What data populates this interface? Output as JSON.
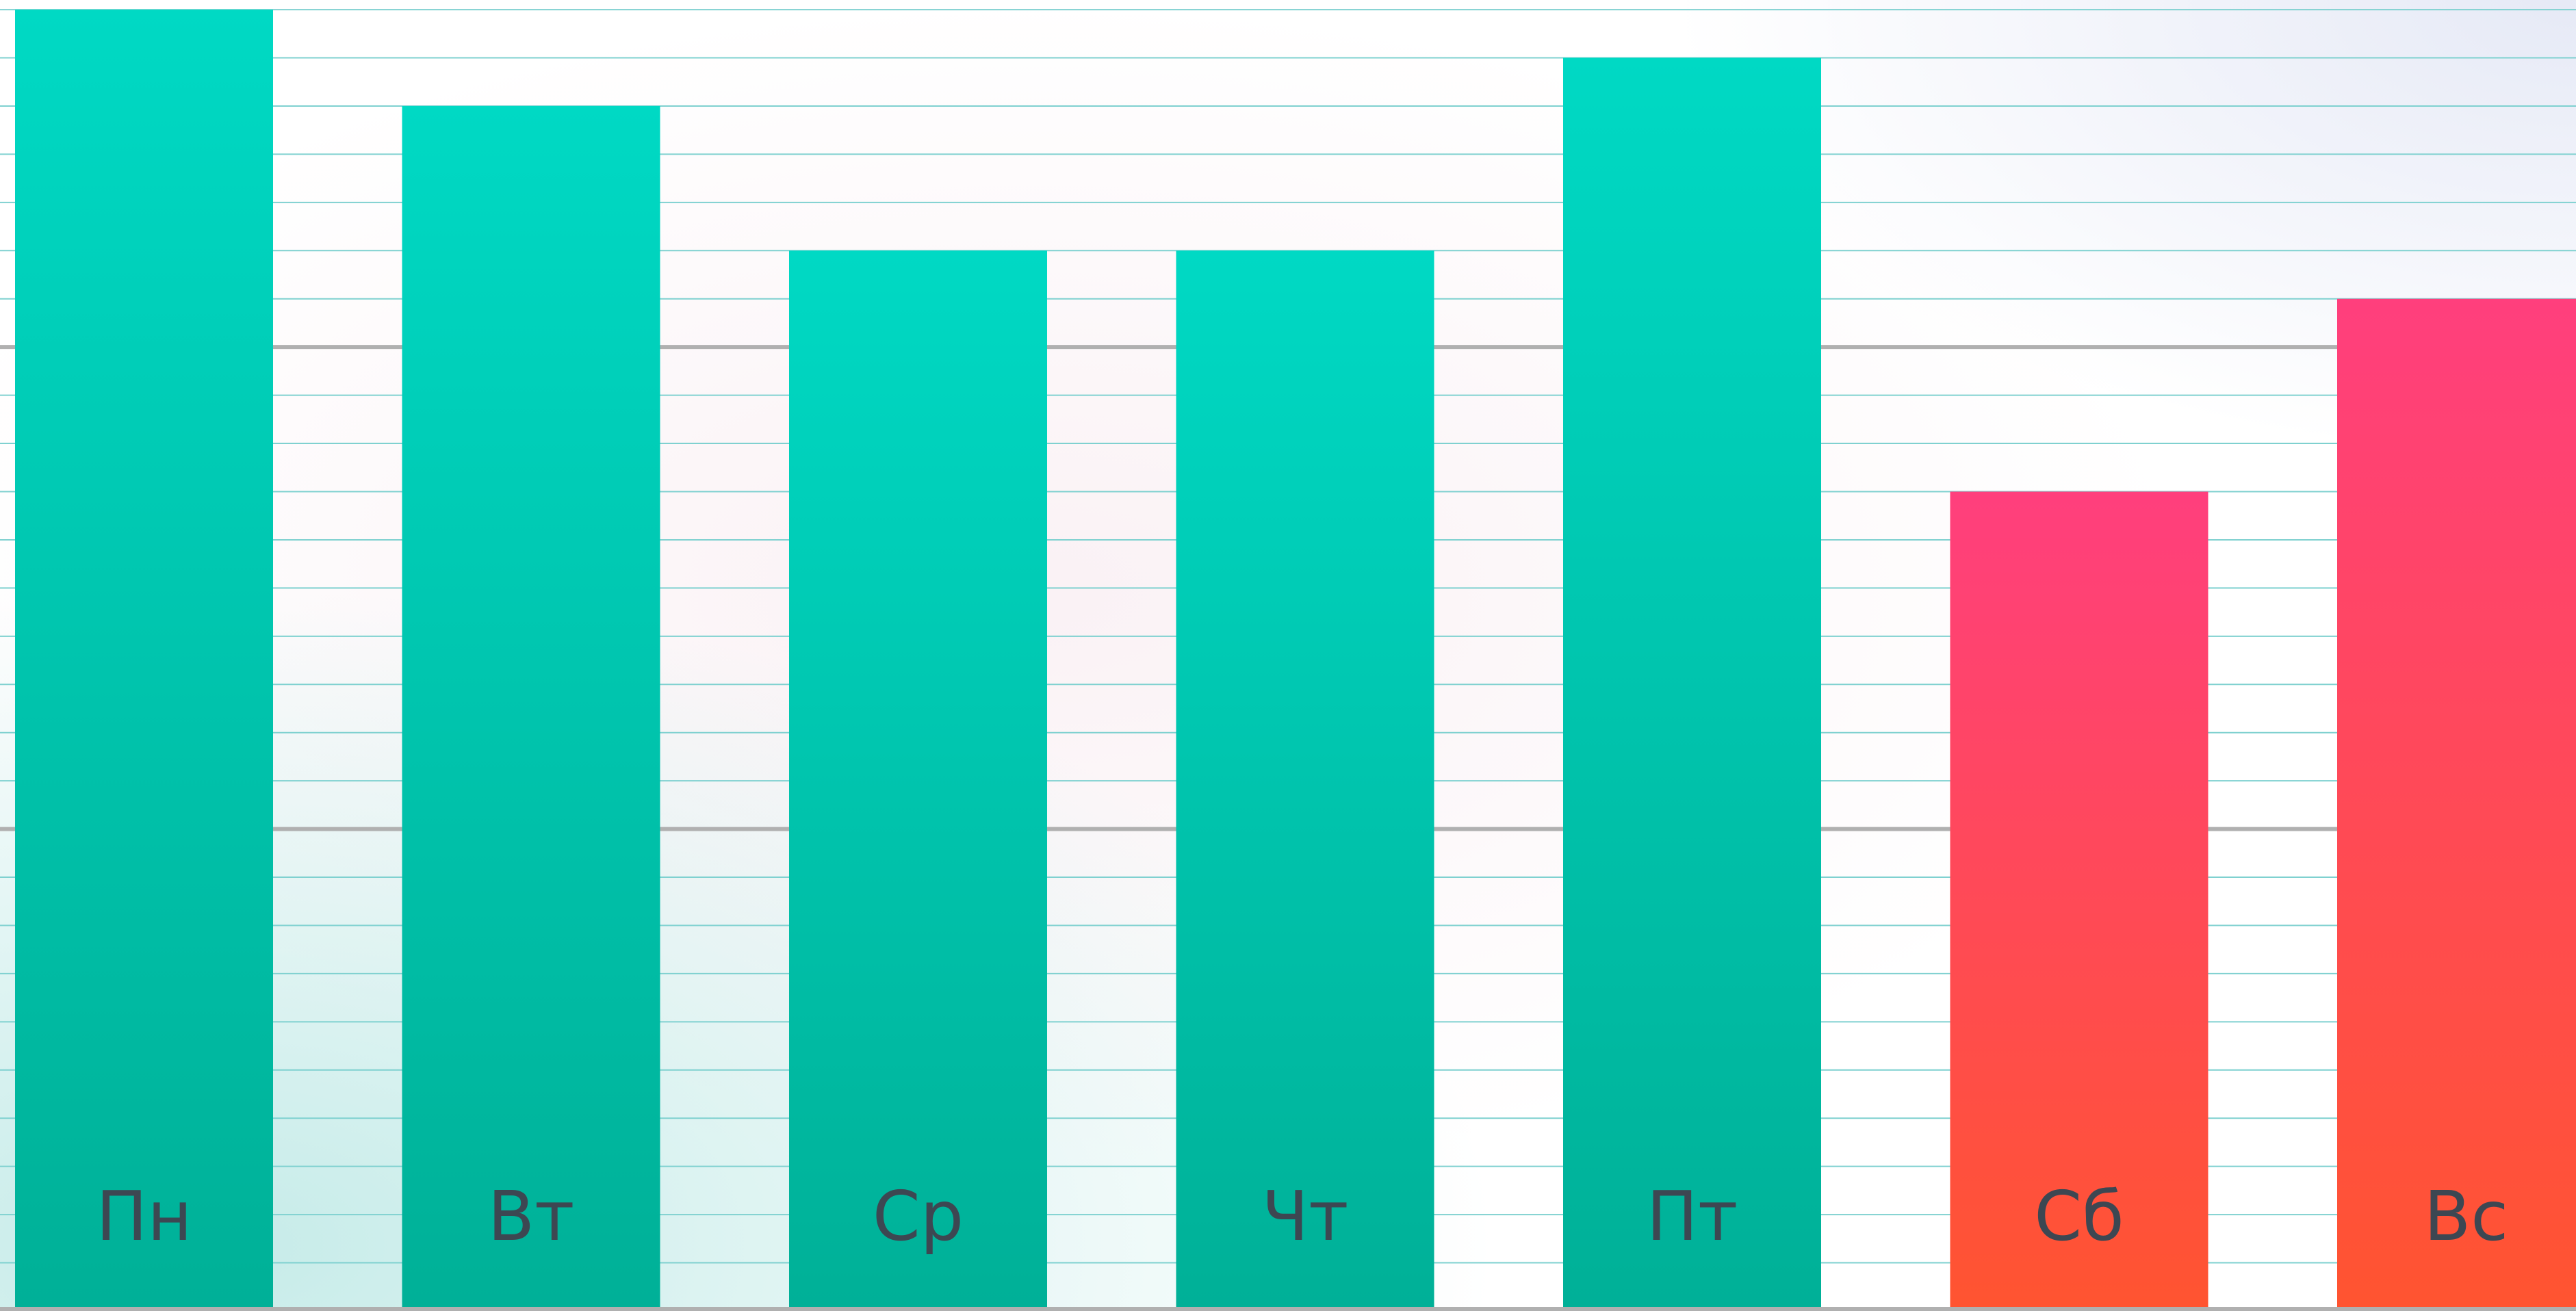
{
  "chart_data": {
    "type": "bar",
    "categories": [
      "Пн",
      "Вт",
      "Ср",
      "Чт",
      "Пт",
      "Сб",
      "Вс"
    ],
    "values": [
      27,
      25,
      22,
      22,
      26,
      17,
      21
    ],
    "ylim": [
      0,
      27.2
    ],
    "grid": true,
    "major_gridlines": [
      10,
      20
    ],
    "category_group_colors": {
      "weekday": {
        "top": "#00D9C4",
        "bottom": "#00B097"
      },
      "weekend": {
        "top": "#FF3F7D",
        "bottom": "#FF5430"
      }
    },
    "bar_groups": [
      "weekday",
      "weekday",
      "weekday",
      "weekday",
      "weekday",
      "weekend",
      "weekend"
    ],
    "tick_label_color": "#3D4752",
    "minor_grid_color": "#7FD1D0",
    "major_grid_color": "#B0B0B0",
    "background_tint_color": "#BFE9E6"
  }
}
